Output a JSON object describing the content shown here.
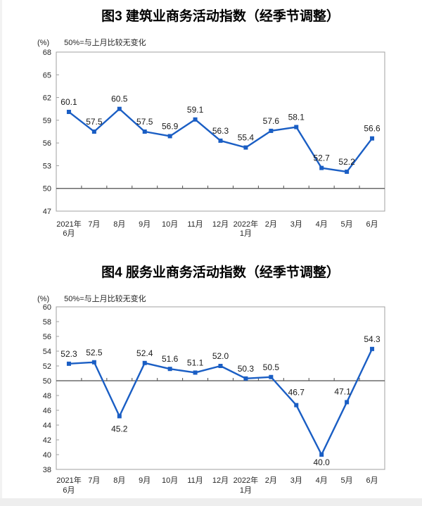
{
  "chart_data": [
    {
      "type": "line",
      "title": "图3 建筑业商务活动指数（经季节调整）",
      "unit": "(%)",
      "note": "50%=与上月比较无变化",
      "categories": [
        [
          "2021年",
          "6月"
        ],
        [
          "7月"
        ],
        [
          "8月"
        ],
        [
          "9月"
        ],
        [
          "10月"
        ],
        [
          "11月"
        ],
        [
          "12月"
        ],
        [
          "2022年",
          "1月"
        ],
        [
          "2月"
        ],
        [
          "3月"
        ],
        [
          "4月"
        ],
        [
          "5月"
        ],
        [
          "6月"
        ]
      ],
      "values": [
        60.1,
        57.5,
        60.5,
        57.5,
        56.9,
        59.1,
        56.3,
        55.4,
        57.6,
        58.1,
        52.7,
        52.2,
        56.6
      ],
      "ylim": [
        47,
        68
      ],
      "ytick_step": 3,
      "refline": 50,
      "grid": false,
      "legend": "none",
      "colors": {
        "line": "#1a5ec4",
        "frame": "#a0a0a0",
        "refline": "#4d4d4d",
        "text": "#262626"
      },
      "label_overrides": {}
    },
    {
      "type": "line",
      "title": "图4 服务业商务活动指数（经季节调整）",
      "unit": "(%)",
      "note": "50%=与上月比较无变化",
      "categories": [
        [
          "2021年",
          "6月"
        ],
        [
          "7月"
        ],
        [
          "8月"
        ],
        [
          "9月"
        ],
        [
          "10月"
        ],
        [
          "11月"
        ],
        [
          "12月"
        ],
        [
          "2022年",
          "1月"
        ],
        [
          "2月"
        ],
        [
          "3月"
        ],
        [
          "4月"
        ],
        [
          "5月"
        ],
        [
          "6月"
        ]
      ],
      "values": [
        52.3,
        52.5,
        45.2,
        52.4,
        51.6,
        51.1,
        52.0,
        50.3,
        50.5,
        46.7,
        40.0,
        47.1,
        54.3
      ],
      "ylim": [
        38,
        60
      ],
      "ytick_step": 2,
      "refline": 50,
      "grid": false,
      "legend": "none",
      "colors": {
        "line": "#1a5ec4",
        "frame": "#a0a0a0",
        "refline": "#4d4d4d",
        "text": "#262626"
      },
      "label_overrides": {
        "2": {
          "dy": 22
        },
        "9": {
          "dy": -14
        },
        "10": {
          "dy": 15
        },
        "11": {
          "dx": -6,
          "dy": -11
        }
      }
    }
  ]
}
